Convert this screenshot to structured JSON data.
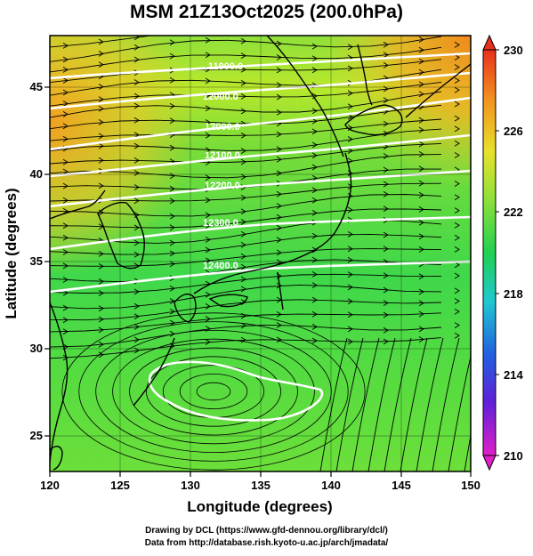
{
  "title": "MSM 21Z13Oct2025 (200.0hPa)",
  "xlabel": "Longitude (degrees)",
  "ylabel": "Latitude  (degrees)",
  "x_ticks": [
    "120",
    "125",
    "130",
    "135",
    "140",
    "145",
    "150"
  ],
  "y_ticks": [
    "25",
    "30",
    "35",
    "40",
    "45"
  ],
  "colorbar": {
    "ticks": [
      "210",
      "214",
      "218",
      "222",
      "226",
      "230"
    ],
    "min": 210,
    "max": 230
  },
  "contour_labels": [
    "11900.0",
    "12000.0",
    "12100.0",
    "12200.0",
    "12300.0",
    "12400.0"
  ],
  "footer": {
    "line1": "Drawing by DCL (https://www.gfd-dennou.org/library/dcl/)",
    "line2": "Data from http://database.rish.kyoto-u.ac.jp/arch/jmadata/"
  },
  "colors": {
    "field_green": "#3fd84a",
    "field_yellow_green": "#a8e830",
    "field_orange": "#f2a020",
    "contour": "#ffffff",
    "coastline": "#000000"
  },
  "chart_data": {
    "type": "heatmap",
    "title": "MSM 21Z13Oct2025 (200.0hPa)",
    "xlabel": "Longitude (degrees)",
    "ylabel": "Latitude  (degrees)",
    "xlim": [
      120,
      150
    ],
    "ylim": [
      22.5,
      47.5
    ],
    "colorbar_range": [
      210,
      230
    ],
    "contour_levels": [
      11900,
      12000,
      12100,
      12200,
      12300,
      12400
    ],
    "grid": true
  }
}
